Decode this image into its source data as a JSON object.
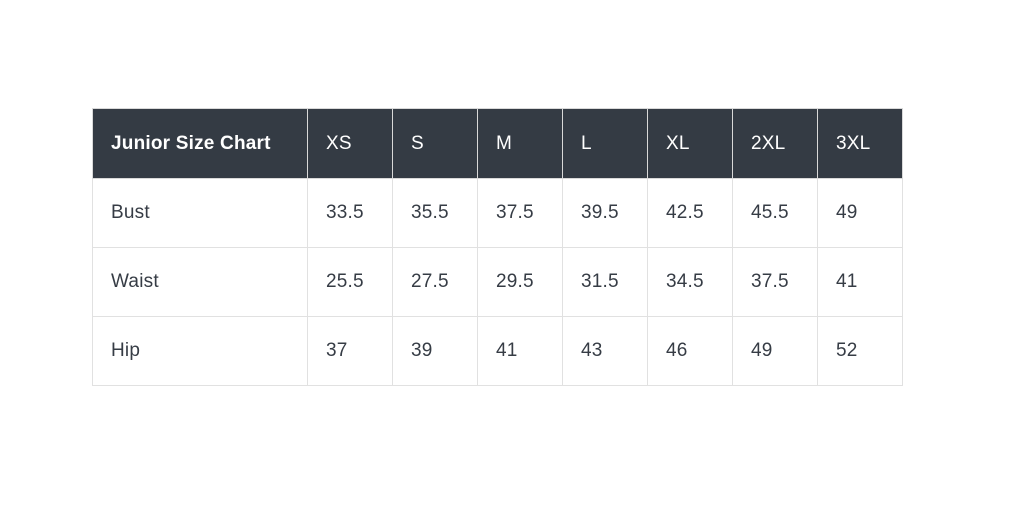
{
  "title": "Junior Size Chart",
  "columns": [
    "XS",
    "S",
    "M",
    "L",
    "XL",
    "2XL",
    "3XL"
  ],
  "rows": [
    {
      "label": "Bust",
      "values": [
        "33.5",
        "35.5",
        "37.5",
        "39.5",
        "42.5",
        "45.5",
        "49"
      ]
    },
    {
      "label": "Waist",
      "values": [
        "25.5",
        "27.5",
        "29.5",
        "31.5",
        "34.5",
        "37.5",
        "41"
      ]
    },
    {
      "label": "Hip",
      "values": [
        "37",
        "39",
        "41",
        "43",
        "46",
        "49",
        "52"
      ]
    }
  ],
  "colors": {
    "header_bg": "#343b44",
    "header_text": "#ffffff",
    "body_text": "#363c45",
    "border": "#e1e1e1",
    "page_bg": "#ffffff"
  },
  "chart_data": {
    "type": "table",
    "title": "Junior Size Chart",
    "categories": [
      "XS",
      "S",
      "M",
      "L",
      "XL",
      "2XL",
      "3XL"
    ],
    "series": [
      {
        "name": "Bust",
        "values": [
          33.5,
          35.5,
          37.5,
          39.5,
          42.5,
          45.5,
          49
        ]
      },
      {
        "name": "Waist",
        "values": [
          25.5,
          27.5,
          29.5,
          31.5,
          34.5,
          37.5,
          41
        ]
      },
      {
        "name": "Hip",
        "values": [
          37,
          39,
          41,
          43,
          46,
          49,
          52
        ]
      }
    ],
    "layout_hints": {
      "header_row": "dark",
      "grid": true,
      "value_unit": "inches"
    }
  }
}
